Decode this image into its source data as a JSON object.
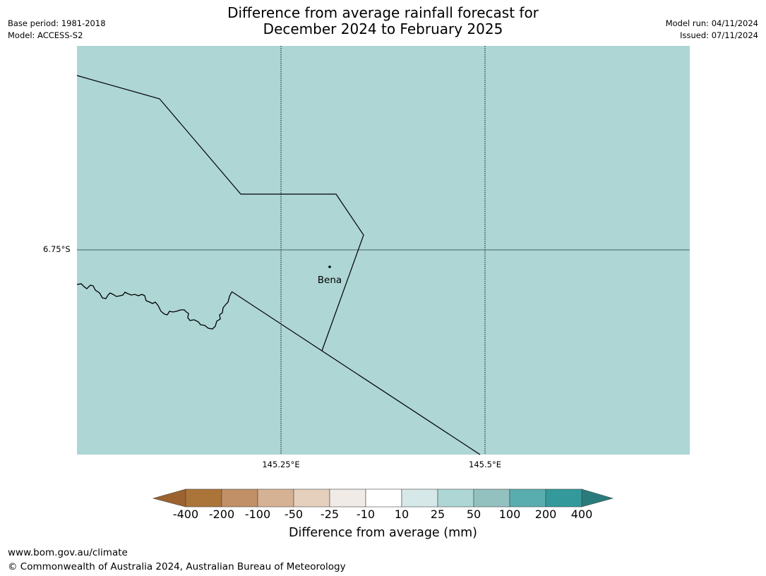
{
  "header": {
    "title_line1": "Difference from average rainfall forecast for",
    "title_line2": "December 2024 to February 2025",
    "base_period": "Base period: 1981-2018",
    "model": "Model: ACCESS-S2",
    "model_run": "Model run: 04/11/2024",
    "issued": "Issued: 07/11/2024"
  },
  "map": {
    "background_color": "#add6d5",
    "gridlines": {
      "latitudes": [
        "6.75°S"
      ],
      "longitudes": [
        "145.25°E",
        "145.5°E"
      ]
    },
    "place": {
      "name": "Bena"
    }
  },
  "colorbar": {
    "label": "Difference from average (mm)",
    "ticks": [
      "-400",
      "-200",
      "-100",
      "-50",
      "-25",
      "-10",
      "10",
      "25",
      "50",
      "100",
      "200",
      "400"
    ],
    "colors": [
      "#ab7439",
      "#c29067",
      "#d6b294",
      "#e5d0bd",
      "#f0ebe7",
      "#ffffff",
      "#d6e9e8",
      "#add6d5",
      "#93c1c0",
      "#5aadae",
      "#33999a"
    ],
    "under_color": "#9c622f",
    "over_color": "#2a7c7c"
  },
  "footer": {
    "url": "www.bom.gov.au/climate",
    "copyright": "© Commonwealth of Australia 2024, Australian Bureau of Meteorology"
  }
}
